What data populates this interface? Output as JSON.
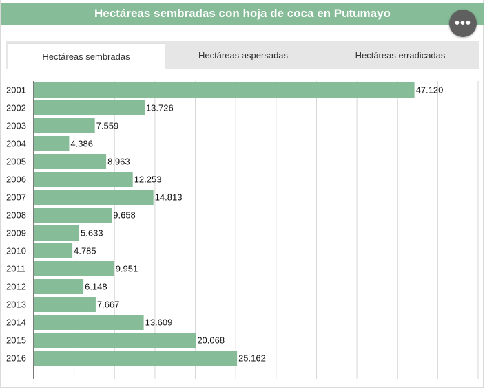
{
  "header": {
    "title": "Hectáreas sembradas con hoja de coca en Putumayo",
    "menu_icon": "more-horizontal-icon",
    "menu_glyph": "•••"
  },
  "tabs": [
    {
      "label": "Hectáreas sembradas",
      "active": true
    },
    {
      "label": "Hectáreas aspersadas",
      "active": false
    },
    {
      "label": "Hectáreas erradicadas",
      "active": false
    }
  ],
  "colors": {
    "bar": "#86bc98",
    "title_bg": "#86bc98",
    "grid": "#d6d6d6",
    "axis": "#222222"
  },
  "chart_data": {
    "type": "bar",
    "orientation": "horizontal",
    "title": "",
    "xlabel": "",
    "ylabel": "",
    "categories": [
      "2001",
      "2002",
      "2003",
      "2004",
      "2005",
      "2006",
      "2007",
      "2008",
      "2009",
      "2010",
      "2011",
      "2012",
      "2013",
      "2014",
      "2015",
      "2016"
    ],
    "values": [
      47120,
      13726,
      7559,
      4386,
      8963,
      12253,
      14813,
      9658,
      5633,
      4785,
      9951,
      6148,
      7667,
      13609,
      20068,
      25162
    ],
    "value_labels": [
      "47.120",
      "13.726",
      "7.559",
      "4.386",
      "8.963",
      "12.253",
      "14.813",
      "9.658",
      "5.633",
      "4.785",
      "9.951",
      "6.148",
      "7.667",
      "13.609",
      "20.068",
      "25.162"
    ],
    "xlim": [
      0,
      55000
    ],
    "x_gridlines": [
      0,
      5000,
      10000,
      15000,
      20000,
      25000,
      30000,
      35000,
      40000,
      45000,
      50000,
      55000
    ],
    "grid": true,
    "legend": "none"
  }
}
